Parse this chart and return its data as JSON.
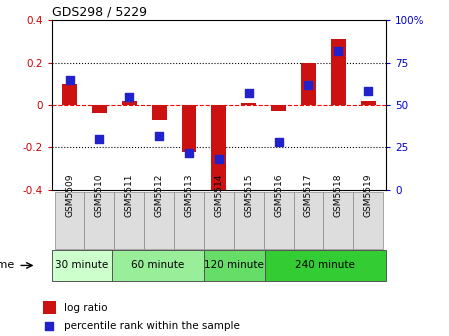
{
  "title": "GDS298 / 5229",
  "samples": [
    "GSM5509",
    "GSM5510",
    "GSM5511",
    "GSM5512",
    "GSM5513",
    "GSM5514",
    "GSM5515",
    "GSM5516",
    "GSM5517",
    "GSM5518",
    "GSM5519"
  ],
  "log_ratio": [
    0.1,
    -0.04,
    0.02,
    -0.07,
    -0.22,
    -0.43,
    0.01,
    -0.03,
    0.2,
    0.31,
    0.02
  ],
  "percentile_rank": [
    65,
    30,
    55,
    32,
    22,
    18,
    57,
    28,
    62,
    82,
    58
  ],
  "ylim_left": [
    -0.4,
    0.4
  ],
  "ylim_right": [
    0,
    100
  ],
  "yticks_left": [
    -0.4,
    -0.2,
    0.0,
    0.2,
    0.4
  ],
  "yticks_right": [
    0,
    25,
    50,
    75,
    100
  ],
  "yticklabels_right": [
    "0",
    "25",
    "50",
    "75",
    "100%"
  ],
  "hlines": [
    0.2,
    0.0,
    -0.2
  ],
  "hline_styles": [
    "dotted",
    "dashed",
    "dotted"
  ],
  "hline_colors": [
    "black",
    "red",
    "black"
  ],
  "bar_color": "#cc1111",
  "dot_color": "#2222cc",
  "bar_width": 0.5,
  "groups": [
    {
      "label": "30 minute",
      "start": 0,
      "end": 2,
      "color": "#ccffcc"
    },
    {
      "label": "60 minute",
      "start": 2,
      "end": 5,
      "color": "#99ee99"
    },
    {
      "label": "120 minute",
      "start": 5,
      "end": 7,
      "color": "#66dd66"
    },
    {
      "label": "240 minute",
      "start": 7,
      "end": 11,
      "color": "#33cc33"
    }
  ],
  "xlabel_time": "time",
  "legend_log_ratio": "log ratio",
  "legend_percentile": "percentile rank within the sample",
  "background_color": "#ffffff",
  "tick_label_color_left": "#cc0000",
  "tick_label_color_right": "#0000cc",
  "sample_box_color": "#dddddd"
}
